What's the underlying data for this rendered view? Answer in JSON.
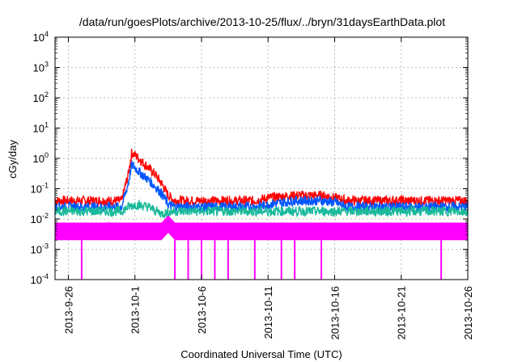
{
  "chart_data": {
    "type": "line",
    "title": "/data/run/goesPlots/archive/2013-10-25/flux/../bryn/31daysEarthData.plot",
    "xlabel": "Coordinated Universal Time (UTC)",
    "ylabel": "cGy/day",
    "yscale": "log",
    "ylim": [
      0.0001,
      10000
    ],
    "xlim": [
      "2013-09-25",
      "2013-10-26"
    ],
    "x_ticks": [
      "2013-9-26",
      "2013-10-1",
      "2013-10-6",
      "2013-10-11",
      "2013-10-16",
      "2013-10-21",
      "2013-10-26"
    ],
    "y_ticks": [
      {
        "base": "10",
        "exp": "-4",
        "value": 0.0001
      },
      {
        "base": "10",
        "exp": "-3",
        "value": 0.001
      },
      {
        "base": "10",
        "exp": "-2",
        "value": 0.01
      },
      {
        "base": "10",
        "exp": "-1",
        "value": 0.1
      },
      {
        "base": "10",
        "exp": "0",
        "value": 1
      },
      {
        "base": "10",
        "exp": "1",
        "value": 10
      },
      {
        "base": "10",
        "exp": "2",
        "value": 100
      },
      {
        "base": "10",
        "exp": "3",
        "value": 1000
      },
      {
        "base": "10",
        "exp": "4",
        "value": 10000
      }
    ],
    "grid": true,
    "series": [
      {
        "color": "#ff0000",
        "x": [
          "2013-09-25",
          "2013-09-30",
          "2013-09-30T12",
          "2013-09-30T18",
          "2013-10-01",
          "2013-10-01T12",
          "2013-10-02",
          "2013-10-02T12",
          "2013-10-03",
          "2013-10-03T12",
          "2013-10-04",
          "2013-10-10",
          "2013-10-11",
          "2013-10-13",
          "2013-10-15",
          "2013-10-16",
          "2013-10-17",
          "2013-10-26"
        ],
        "y": [
          0.04,
          0.04,
          0.3,
          1.5,
          1.3,
          0.8,
          0.5,
          0.3,
          0.15,
          0.06,
          0.04,
          0.04,
          0.05,
          0.06,
          0.06,
          0.05,
          0.04,
          0.04
        ]
      },
      {
        "color": "#0055ff",
        "x": [
          "2013-09-25",
          "2013-09-30",
          "2013-09-30T12",
          "2013-09-30T18",
          "2013-10-01",
          "2013-10-01T12",
          "2013-10-02",
          "2013-10-02T12",
          "2013-10-03",
          "2013-10-03T12",
          "2013-10-04",
          "2013-10-10",
          "2013-10-11",
          "2013-10-13",
          "2013-10-15",
          "2013-10-16",
          "2013-10-17",
          "2013-10-26"
        ],
        "y": [
          0.025,
          0.025,
          0.15,
          0.6,
          0.5,
          0.3,
          0.2,
          0.12,
          0.07,
          0.03,
          0.025,
          0.025,
          0.03,
          0.04,
          0.04,
          0.035,
          0.025,
          0.025
        ]
      },
      {
        "color": "#1ab99a",
        "x": [
          "2013-09-25",
          "2013-09-30",
          "2013-09-30T12",
          "2013-10-01",
          "2013-10-02",
          "2013-10-03",
          "2013-10-04",
          "2013-10-26"
        ],
        "y": [
          0.018,
          0.018,
          0.025,
          0.03,
          0.025,
          0.015,
          0.018,
          0.018
        ]
      },
      {
        "color": "#ff00ff",
        "x": [
          "2013-09-25",
          "2013-10-03",
          "2013-10-03T12",
          "2013-10-04",
          "2013-10-26"
        ],
        "y": [
          0.004,
          0.004,
          0.007,
          0.004,
          0.004
        ],
        "dips": [
          "2013-09-27",
          "2013-10-04",
          "2013-10-05",
          "2013-10-06",
          "2013-10-07",
          "2013-10-08",
          "2013-10-10",
          "2013-10-12",
          "2013-10-13",
          "2013-10-15",
          "2013-10-24"
        ]
      }
    ]
  }
}
